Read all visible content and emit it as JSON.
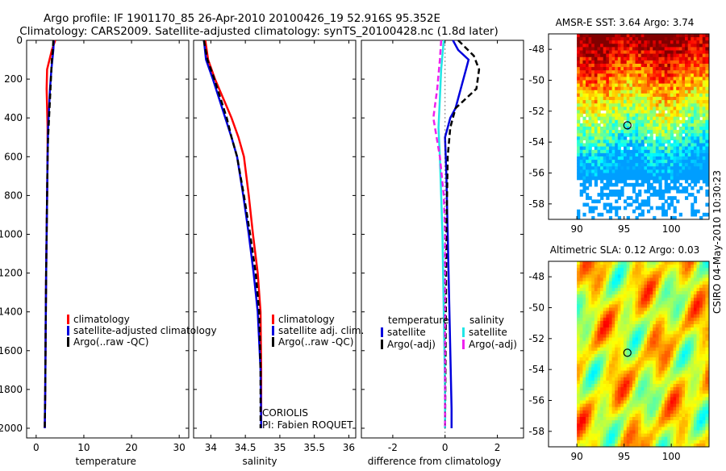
{
  "page": {
    "title_line1": "Argo profile: IF 1901170_85 26-Apr-2010 20100426_19 52.916S 95.352E",
    "title_line2": "Climatology: CARS2009. Satellite-adjusted climatology: synTS_20100428.nc (1.8d later)",
    "credit": "CSIRO 04-May-2010 10:30:23",
    "colors": {
      "red": "#ff0000",
      "blue": "#0000dd",
      "black": "#000000",
      "cyan": "#22e6e6",
      "magenta": "#ee22ee"
    }
  },
  "chart_data": [
    {
      "type": "line",
      "name": "temperature-panel",
      "xlabel": "temperature",
      "ylabel": "",
      "xlim": [
        -2,
        32
      ],
      "ylim": [
        0,
        2050
      ],
      "y_inverted": true,
      "xticks": [
        0,
        10,
        20,
        30
      ],
      "xtick_labels": [
        "0",
        "10",
        "20",
        "30"
      ],
      "yticks": [
        0,
        200,
        400,
        600,
        800,
        1000,
        1200,
        1400,
        1600,
        1800,
        2000
      ],
      "ytick_labels": [
        "0",
        "200",
        "400",
        "600",
        "800",
        "1000",
        "1200",
        "1400",
        "1600",
        "1800",
        "2000"
      ],
      "legend": [
        "climatology",
        "satellite-adjusted climatology",
        "Argo(..raw -QC)"
      ],
      "legend_position": "lower-middle",
      "series": [
        {
          "name": "climatology",
          "color": "red",
          "dash": false,
          "x": [
            4.0,
            3.3,
            2.3,
            2.2,
            2.3,
            2.4,
            2.4,
            2.3,
            2.2,
            2.1,
            2.0,
            1.9,
            1.8
          ],
          "y": [
            0,
            50,
            150,
            250,
            350,
            450,
            600,
            800,
            1000,
            1200,
            1500,
            1800,
            2000
          ]
        },
        {
          "name": "satellite-adjusted climatology",
          "color": "blue",
          "dash": false,
          "x": [
            3.7,
            3.6,
            3.2,
            2.9,
            2.7,
            2.5,
            2.4,
            2.3,
            2.2,
            2.1,
            2.0,
            1.9,
            1.8
          ],
          "y": [
            0,
            50,
            150,
            250,
            350,
            450,
            600,
            800,
            1000,
            1200,
            1500,
            1800,
            2000
          ]
        },
        {
          "name": "Argo(..raw -QC)",
          "color": "black",
          "dash": true,
          "x": [
            3.6,
            3.5,
            3.3,
            3.1,
            2.9,
            2.7,
            2.5,
            2.4,
            2.3,
            2.2,
            2.1,
            2.0,
            1.9,
            1.8
          ],
          "y": [
            0,
            50,
            100,
            200,
            300,
            400,
            500,
            600,
            800,
            1000,
            1200,
            1500,
            1800,
            2000
          ]
        }
      ]
    },
    {
      "type": "line",
      "name": "salinity-panel",
      "xlabel": "salinity",
      "ylabel": "",
      "xlim": [
        33.75,
        36.1
      ],
      "ylim": [
        0,
        2050
      ],
      "y_inverted": true,
      "xticks": [
        34,
        34.5,
        35,
        35.5,
        36
      ],
      "xtick_labels": [
        "34",
        "34.5",
        "35",
        "35.5",
        "36"
      ],
      "legend": [
        "climatology",
        "satellite adj. clim.",
        "Argo(..raw -QC)"
      ],
      "legend_position": "lower-right",
      "annotations": [
        "CORIOLIS",
        "PI: Fabien ROQUET"
      ],
      "series": [
        {
          "name": "climatology",
          "color": "red",
          "dash": false,
          "x": [
            33.92,
            33.96,
            34.06,
            34.18,
            34.3,
            34.4,
            34.48,
            34.55,
            34.61,
            34.68,
            34.72,
            34.73,
            34.73
          ],
          "y": [
            0,
            100,
            200,
            300,
            400,
            500,
            600,
            800,
            1000,
            1200,
            1400,
            1700,
            2000
          ]
        },
        {
          "name": "satellite adj. clim.",
          "color": "blue",
          "dash": false,
          "x": [
            33.9,
            33.93,
            34.03,
            34.12,
            34.21,
            34.3,
            34.38,
            34.47,
            34.55,
            34.62,
            34.68,
            34.72,
            34.73
          ],
          "y": [
            0,
            100,
            200,
            300,
            400,
            500,
            600,
            800,
            1000,
            1200,
            1400,
            1700,
            2000
          ]
        },
        {
          "name": "Argo(..raw -QC)",
          "color": "black",
          "dash": true,
          "x": [
            33.9,
            33.95,
            34.05,
            34.14,
            34.23,
            34.3,
            34.38,
            34.48,
            34.57,
            34.65,
            34.7,
            34.72,
            34.72
          ],
          "y": [
            0,
            100,
            200,
            300,
            400,
            500,
            600,
            800,
            1000,
            1200,
            1400,
            1700,
            2000
          ]
        }
      ]
    },
    {
      "type": "line",
      "name": "difference-panel",
      "xlabel": "difference from climatology",
      "ylabel": "",
      "xlim": [
        -3.2,
        3.0
      ],
      "ylim": [
        0,
        2050
      ],
      "y_inverted": true,
      "xticks": [
        -2,
        0,
        2
      ],
      "xtick_labels": [
        "-2",
        "0",
        "2"
      ],
      "legend_groups": [
        {
          "title": "temperature",
          "items": [
            "satellite",
            "Argo(-adj)"
          ]
        },
        {
          "title": "salinity",
          "items": [
            "satellite",
            "Argo(-adj)"
          ]
        }
      ],
      "series": [
        {
          "name": "temperature satellite",
          "color": "blue",
          "dash": false,
          "x": [
            0.3,
            0.5,
            0.9,
            0.8,
            0.6,
            0.4,
            0.2,
            0.1,
            0.0,
            0.05,
            0.1,
            0.15,
            0.2,
            0.25,
            0.25
          ],
          "y": [
            0,
            50,
            100,
            150,
            250,
            350,
            400,
            450,
            500,
            700,
            1000,
            1300,
            1600,
            1900,
            2000
          ]
        },
        {
          "name": "temperature Argo(-adj)",
          "color": "black",
          "dash": true,
          "x": [
            0.5,
            1.1,
            1.3,
            1.2,
            0.8,
            0.4,
            0.2,
            0.1,
            0.05,
            0.0
          ],
          "y": [
            0,
            80,
            150,
            250,
            300,
            350,
            450,
            600,
            1000,
            2000
          ]
        },
        {
          "name": "salinity satellite",
          "color": "cyan",
          "dash": false,
          "x": [
            -0.05,
            -0.15,
            -0.2,
            -0.25,
            -0.2,
            -0.15,
            -0.1,
            -0.05,
            0.0,
            0.0
          ],
          "y": [
            0,
            150,
            300,
            450,
            600,
            800,
            1000,
            1400,
            1800,
            2000
          ]
        },
        {
          "name": "salinity Argo(-adj)",
          "color": "magenta",
          "dash": true,
          "x": [
            -0.15,
            -0.2,
            -0.3,
            -0.45,
            -0.2,
            -0.05,
            0.0,
            0.0
          ],
          "y": [
            0,
            100,
            250,
            400,
            600,
            800,
            1000,
            2000
          ]
        }
      ]
    },
    {
      "type": "heatmap",
      "name": "sst-map",
      "title": "AMSR-E SST: 3.64 Argo: 3.74",
      "xlim": [
        87,
        104
      ],
      "ylim": [
        -59,
        -47
      ],
      "xticks": [
        90,
        95,
        100
      ],
      "xtick_labels": [
        "90",
        "95",
        "100"
      ],
      "yticks": [
        -48,
        -50,
        -52,
        -54,
        -56,
        -58
      ],
      "ytick_labels": [
        "-48",
        "-50",
        "-52",
        "-54",
        "-56",
        "-58"
      ],
      "float_position": [
        95.352,
        -52.916
      ]
    },
    {
      "type": "heatmap",
      "name": "sla-map",
      "title": "Altimetric SLA: 0.12 Argo: 0.03",
      "xlim": [
        87,
        104
      ],
      "ylim": [
        -59,
        -47
      ],
      "xticks": [
        90,
        95,
        100
      ],
      "xtick_labels": [
        "90",
        "95",
        "100"
      ],
      "yticks": [
        -48,
        -50,
        -52,
        -54,
        -56,
        -58
      ],
      "ytick_labels": [
        "-48",
        "-50",
        "-52",
        "-54",
        "-56",
        "-58"
      ],
      "float_position": [
        95.352,
        -52.916
      ]
    }
  ]
}
